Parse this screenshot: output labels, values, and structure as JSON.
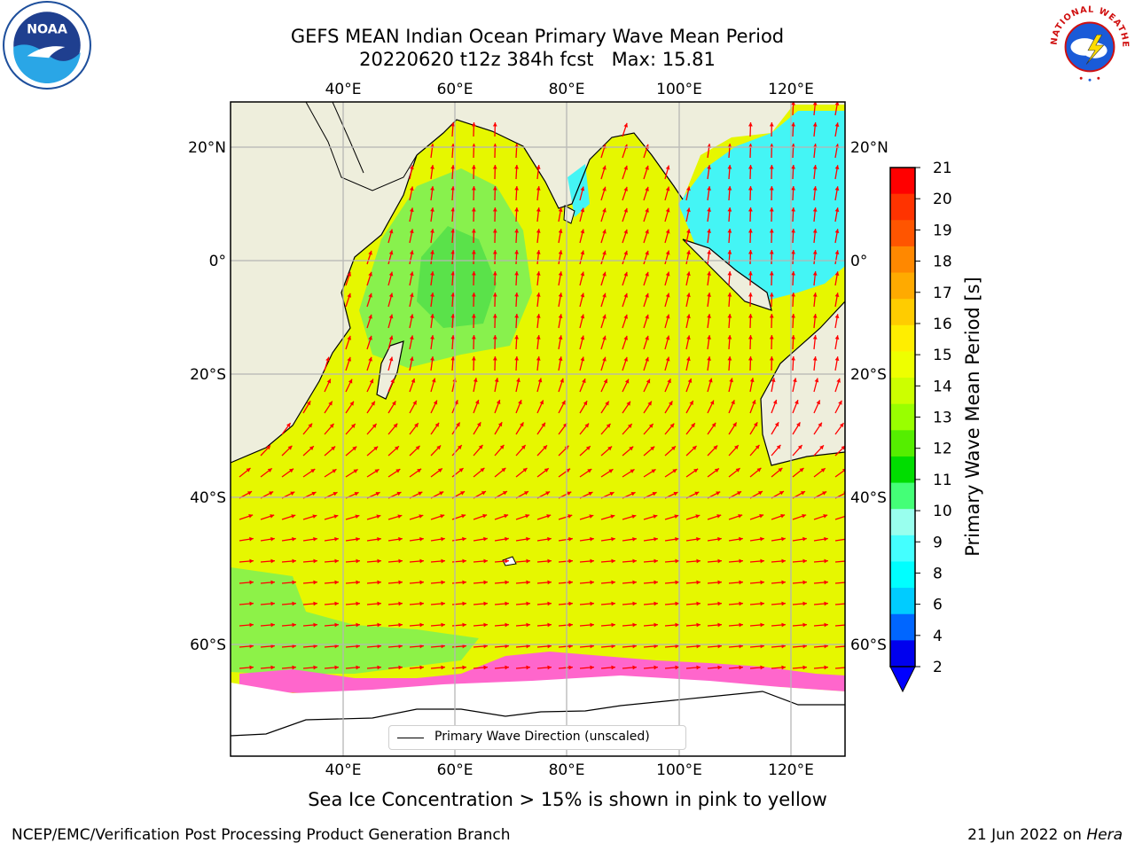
{
  "title": {
    "line1": "GEFS MEAN Indian Ocean Primary Wave Mean Period",
    "line2": "20220620 t12z 384h fcst   Max: 15.81"
  },
  "map": {
    "top_lon_labels": [
      "40°E",
      "60°E",
      "80°E",
      "100°E",
      "120°E"
    ],
    "bottom_lon_labels": [
      "40°E",
      "60°E",
      "80°E",
      "100°E",
      "120°E"
    ],
    "left_lat_labels": [
      "20°N",
      "0°",
      "20°S",
      "40°S",
      "60°S"
    ],
    "right_lat_labels": [
      "20°N",
      "0°",
      "20°S",
      "40°S",
      "60°S"
    ],
    "legend": "Primary Wave Direction (unscaled)",
    "arrow_color": "#ff0000",
    "land_color": "#eeeedc"
  },
  "colorbar": {
    "title": "Primary Wave Mean Period [s]",
    "ticks": [
      "21",
      "20",
      "19",
      "18",
      "17",
      "16",
      "15",
      "14",
      "13",
      "12",
      "11",
      "10",
      "9",
      "8",
      "6",
      "4",
      "2"
    ],
    "colors": [
      "#ff0000",
      "#ff3300",
      "#ff5500",
      "#ff8800",
      "#ffaa00",
      "#ffcc00",
      "#ffee00",
      "#eeff00",
      "#ccff00",
      "#99ff00",
      "#55ee00",
      "#00dd00",
      "#44ff77",
      "#99ffee",
      "#44ffff",
      "#00ffff",
      "#00ccff",
      "#0066ff",
      "#0000ee"
    ],
    "extend_color": "#0000ff"
  },
  "ice_note": "Sea Ice Concentration > 15% is shown in pink to yellow",
  "footer": {
    "left": "NCEP/EMC/Verification Post Processing Product Generation Branch",
    "date": "21 Jun 2022 on ",
    "host": "Hera"
  },
  "logos": {
    "noaa_text": "NOAA",
    "nws_text": "NATIONAL WEATHER SERVICE"
  }
}
